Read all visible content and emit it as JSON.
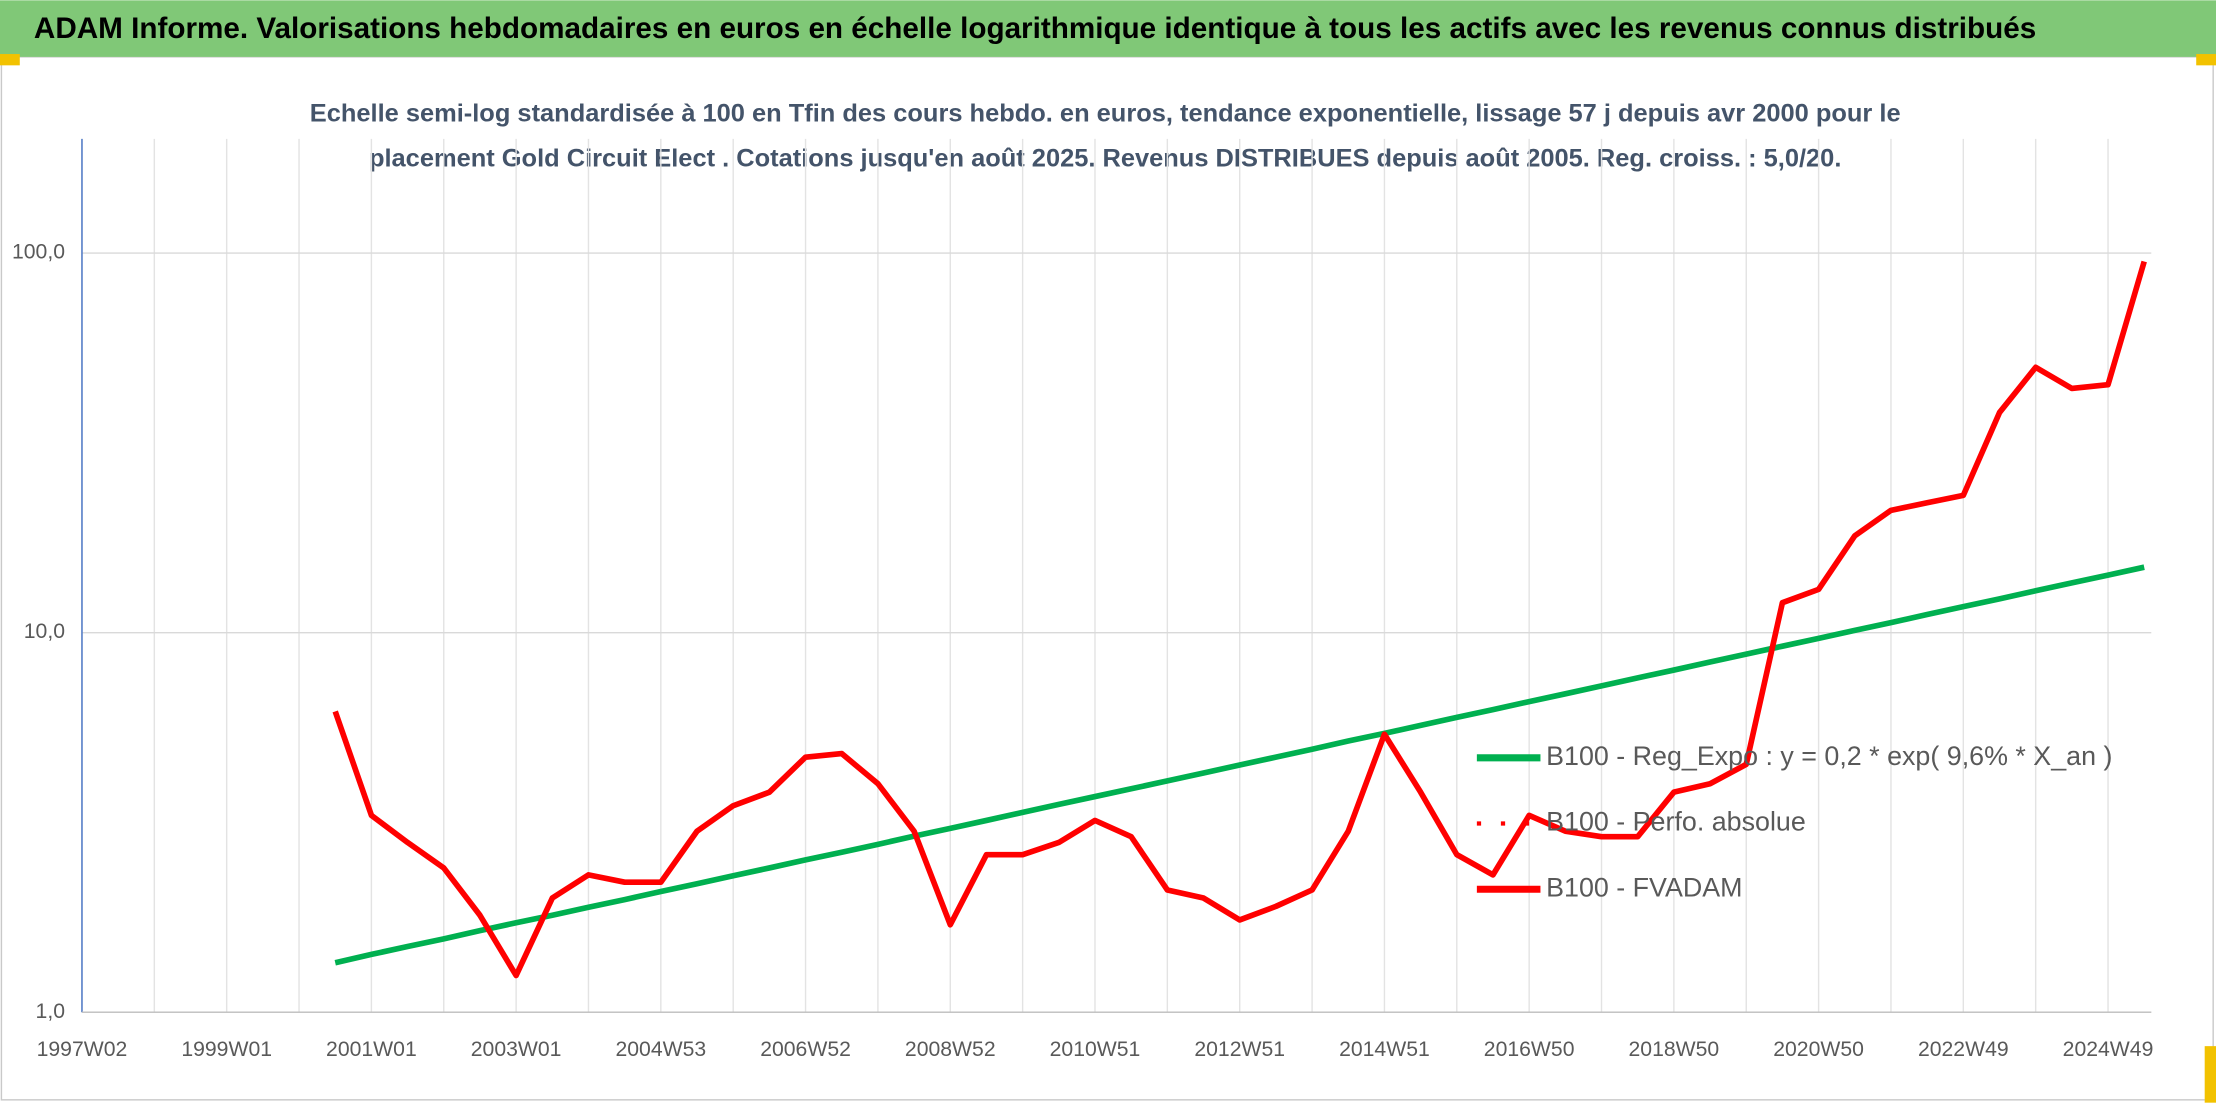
{
  "chart_data": {
    "type": "line",
    "title": "ADAM Informe. Valorisations hebdomadaires en euros en échelle logarithmique identique à tous les actifs avec les revenus connus distribués",
    "subtitle": [
      "Echelle semi-log standardisée à 100 en Tfin des cours hebdo. en euros, tendance exponentielle, lissage 57 j depuis avr 2000 pour le",
      "placement Gold Circuit Elect . Cotations jusqu'en août 2025. Revenus DISTRIBUES depuis août 2005. Reg. croiss. : 5,0/20."
    ],
    "log_scale": true,
    "grid": true,
    "ylim": [
      1,
      200
    ],
    "yticks": [
      {
        "value": 1,
        "label": "1,0"
      },
      {
        "value": 10,
        "label": "10,0"
      },
      {
        "value": 100,
        "label": "100,0"
      }
    ],
    "categories": [
      "1997W02",
      null,
      null,
      null,
      "1999W01",
      null,
      null,
      null,
      "2001W01",
      null,
      null,
      null,
      "2003W01",
      null,
      null,
      null,
      "2004W53",
      null,
      null,
      null,
      "2006W52",
      null,
      null,
      null,
      "2008W52",
      null,
      null,
      null,
      "2010W51",
      null,
      null,
      null,
      "2012W51",
      null,
      null,
      null,
      "2014W51",
      null,
      null,
      null,
      "2016W50",
      null,
      null,
      null,
      "2018W50",
      null,
      null,
      null,
      "2020W50",
      null,
      null,
      null,
      "2022W49",
      null,
      null,
      null,
      "2024W49",
      null
    ],
    "series": [
      {
        "name": "B100 - Reg_Expo : y = 0,2 * exp( 9,6% *  X_an )",
        "color": "#00b050",
        "style": "solid",
        "values": [
          null,
          null,
          null,
          null,
          null,
          null,
          null,
          1.35,
          1.42,
          1.49,
          1.56,
          1.64,
          1.72,
          1.8,
          1.89,
          1.98,
          2.08,
          2.18,
          2.29,
          2.4,
          2.52,
          2.64,
          2.77,
          2.91,
          3.05,
          3.2,
          3.36,
          3.53,
          3.7,
          3.88,
          4.07,
          4.27,
          4.48,
          4.7,
          4.93,
          5.18,
          5.43,
          5.7,
          5.98,
          6.27,
          6.58,
          6.9,
          7.24,
          7.6,
          7.97,
          8.37,
          8.78,
          9.21,
          9.66,
          10.14,
          10.63,
          11.16,
          11.71,
          12.28,
          12.89,
          13.52,
          14.18,
          14.88
        ]
      },
      {
        "name": "B100 - Perfo. absolue",
        "color": "#ff0000",
        "style": "dotted",
        "values": [
          null,
          null,
          null,
          null,
          null,
          null,
          null,
          null,
          null,
          null,
          null,
          null,
          null,
          null,
          null,
          null,
          null,
          null,
          null,
          null,
          null,
          null,
          null,
          null,
          null,
          null,
          null,
          null,
          null,
          null,
          null,
          null,
          null,
          null,
          null,
          null,
          null,
          null,
          null,
          null,
          null,
          null,
          null,
          null,
          null,
          null,
          null,
          null,
          null,
          null,
          null,
          null,
          null,
          null,
          null,
          null,
          null,
          null
        ]
      },
      {
        "name": "B100 - FVADAM",
        "color": "#ff0000",
        "style": "solid",
        "values": [
          null,
          null,
          null,
          null,
          null,
          null,
          null,
          6.2,
          3.3,
          2.8,
          2.4,
          1.8,
          1.25,
          2.0,
          2.3,
          2.2,
          2.2,
          3.0,
          3.5,
          3.8,
          4.7,
          4.8,
          4.0,
          3.0,
          1.7,
          2.6,
          2.6,
          2.8,
          3.2,
          2.9,
          2.1,
          2.0,
          1.75,
          1.9,
          2.1,
          3.0,
          5.4,
          3.8,
          2.6,
          2.3,
          3.3,
          3.0,
          2.9,
          2.9,
          3.8,
          4.0,
          4.5,
          12,
          13,
          18,
          21,
          22,
          23,
          38,
          50,
          44,
          45,
          95
        ]
      }
    ]
  }
}
